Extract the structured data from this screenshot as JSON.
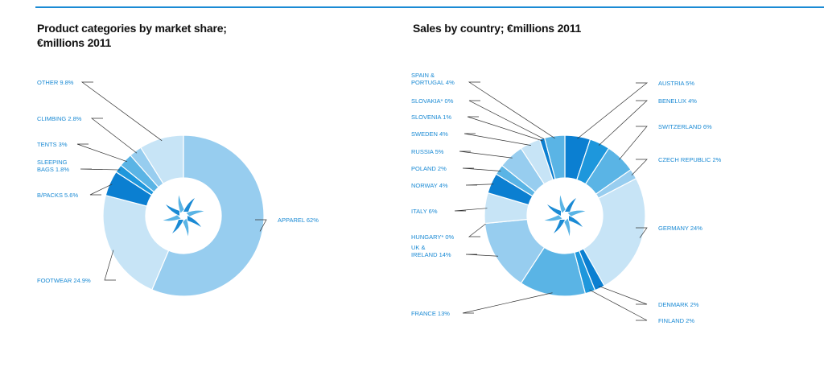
{
  "colors": {
    "accent": "#1a8ad4",
    "palette": [
      "#0b7fd1",
      "#1e97dc",
      "#5ab4e5",
      "#97cdef",
      "#c7e4f6"
    ]
  },
  "chart_data": [
    {
      "type": "pie",
      "title_line1": "Product categories by market share;",
      "title_line2": "€millions 2011",
      "slices": [
        {
          "label": "APPAREL 62%",
          "value": 62,
          "color": "#97cdef"
        },
        {
          "label": "FOOTWEAR 24.9%",
          "value": 24.9,
          "color": "#c7e4f6"
        },
        {
          "label": "B/PACKS 5.6%",
          "value": 5.6,
          "color": "#0b7fd1"
        },
        {
          "label": "SLEEPING BAGS 1.8%",
          "value": 1.8,
          "color": "#1e97dc"
        },
        {
          "label": "TENTS 3%",
          "value": 3,
          "color": "#5ab4e5"
        },
        {
          "label": "CLIMBING 2.8%",
          "value": 2.8,
          "color": "#97cdef"
        },
        {
          "label": "OTHER 9.8%",
          "value": 9.8,
          "color": "#c7e4f6"
        }
      ]
    },
    {
      "type": "pie",
      "title": "Sales by country; €millions 2011",
      "slices": [
        {
          "label": "AUSTRIA  5%",
          "value": 5,
          "color": "#0b7fd1"
        },
        {
          "label": "BENELUX  4%",
          "value": 4,
          "color": "#1e97dc"
        },
        {
          "label": "SWITZERLAND  6%",
          "value": 6,
          "color": "#5ab4e5"
        },
        {
          "label": "CZECH REPUBLIC  2%",
          "value": 2,
          "color": "#97cdef"
        },
        {
          "label": "GERMANY  24%",
          "value": 24,
          "color": "#c7e4f6"
        },
        {
          "label": "DENMARK  2%",
          "value": 2,
          "color": "#0b7fd1"
        },
        {
          "label": "FINLAND  2%",
          "value": 2,
          "color": "#1e97dc"
        },
        {
          "label": "FRANCE  13%",
          "value": 13,
          "color": "#5ab4e5"
        },
        {
          "label": "UK & IRELAND  14%",
          "value": 14,
          "color": "#97cdef"
        },
        {
          "label": "HUNGARY*  0%",
          "value": 0,
          "color": "#0b7fd1"
        },
        {
          "label": "ITALY  6%",
          "value": 6,
          "color": "#c7e4f6"
        },
        {
          "label": "NORWAY  4%",
          "value": 4,
          "color": "#0b7fd1"
        },
        {
          "label": "POLAND  2%",
          "value": 2,
          "color": "#5ab4e5"
        },
        {
          "label": "RUSSIA  5%",
          "value": 5,
          "color": "#97cdef"
        },
        {
          "label": "SWEDEN  4%",
          "value": 4,
          "color": "#c7e4f6"
        },
        {
          "label": "SLOVENIA  1%",
          "value": 1,
          "color": "#0b7fd1"
        },
        {
          "label": "SLOVAKIA*  0%",
          "value": 0,
          "color": "#1e97dc"
        },
        {
          "label": "SPAIN & PORTUGAL  4%",
          "value": 4,
          "color": "#5ab4e5"
        }
      ]
    }
  ]
}
